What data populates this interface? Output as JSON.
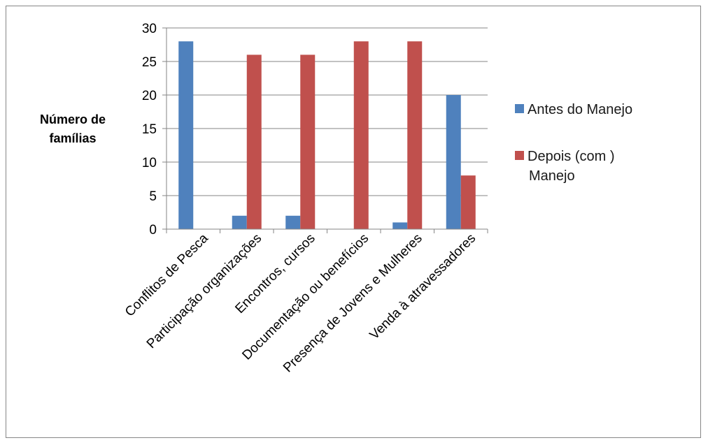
{
  "chart_data": {
    "type": "bar",
    "categories": [
      "Conflitos de Pesca",
      "Participação organizações",
      "Encontros, cursos",
      "Documentação ou benefícios",
      "Presença de Jovens e Mulheres",
      "Venda à atravessadores"
    ],
    "series": [
      {
        "name": "Antes do Manejo",
        "color": "#4F81BD",
        "values": [
          28,
          2,
          2,
          0,
          1,
          20
        ]
      },
      {
        "name": "Depois (com ) Manejo",
        "color": "#C0504D",
        "values": [
          0,
          26,
          26,
          28,
          28,
          8
        ]
      }
    ],
    "title": "",
    "xlabel": "",
    "ylabel": [
      "Número de",
      "famílias"
    ],
    "ylim": [
      0,
      30
    ],
    "yticks": [
      0,
      5,
      10,
      15,
      20,
      25,
      30
    ],
    "grid": true,
    "legend_position": "right",
    "legend_lines": [
      [
        "Antes do Manejo"
      ],
      [
        "Depois (com )",
        "Manejo"
      ]
    ]
  }
}
